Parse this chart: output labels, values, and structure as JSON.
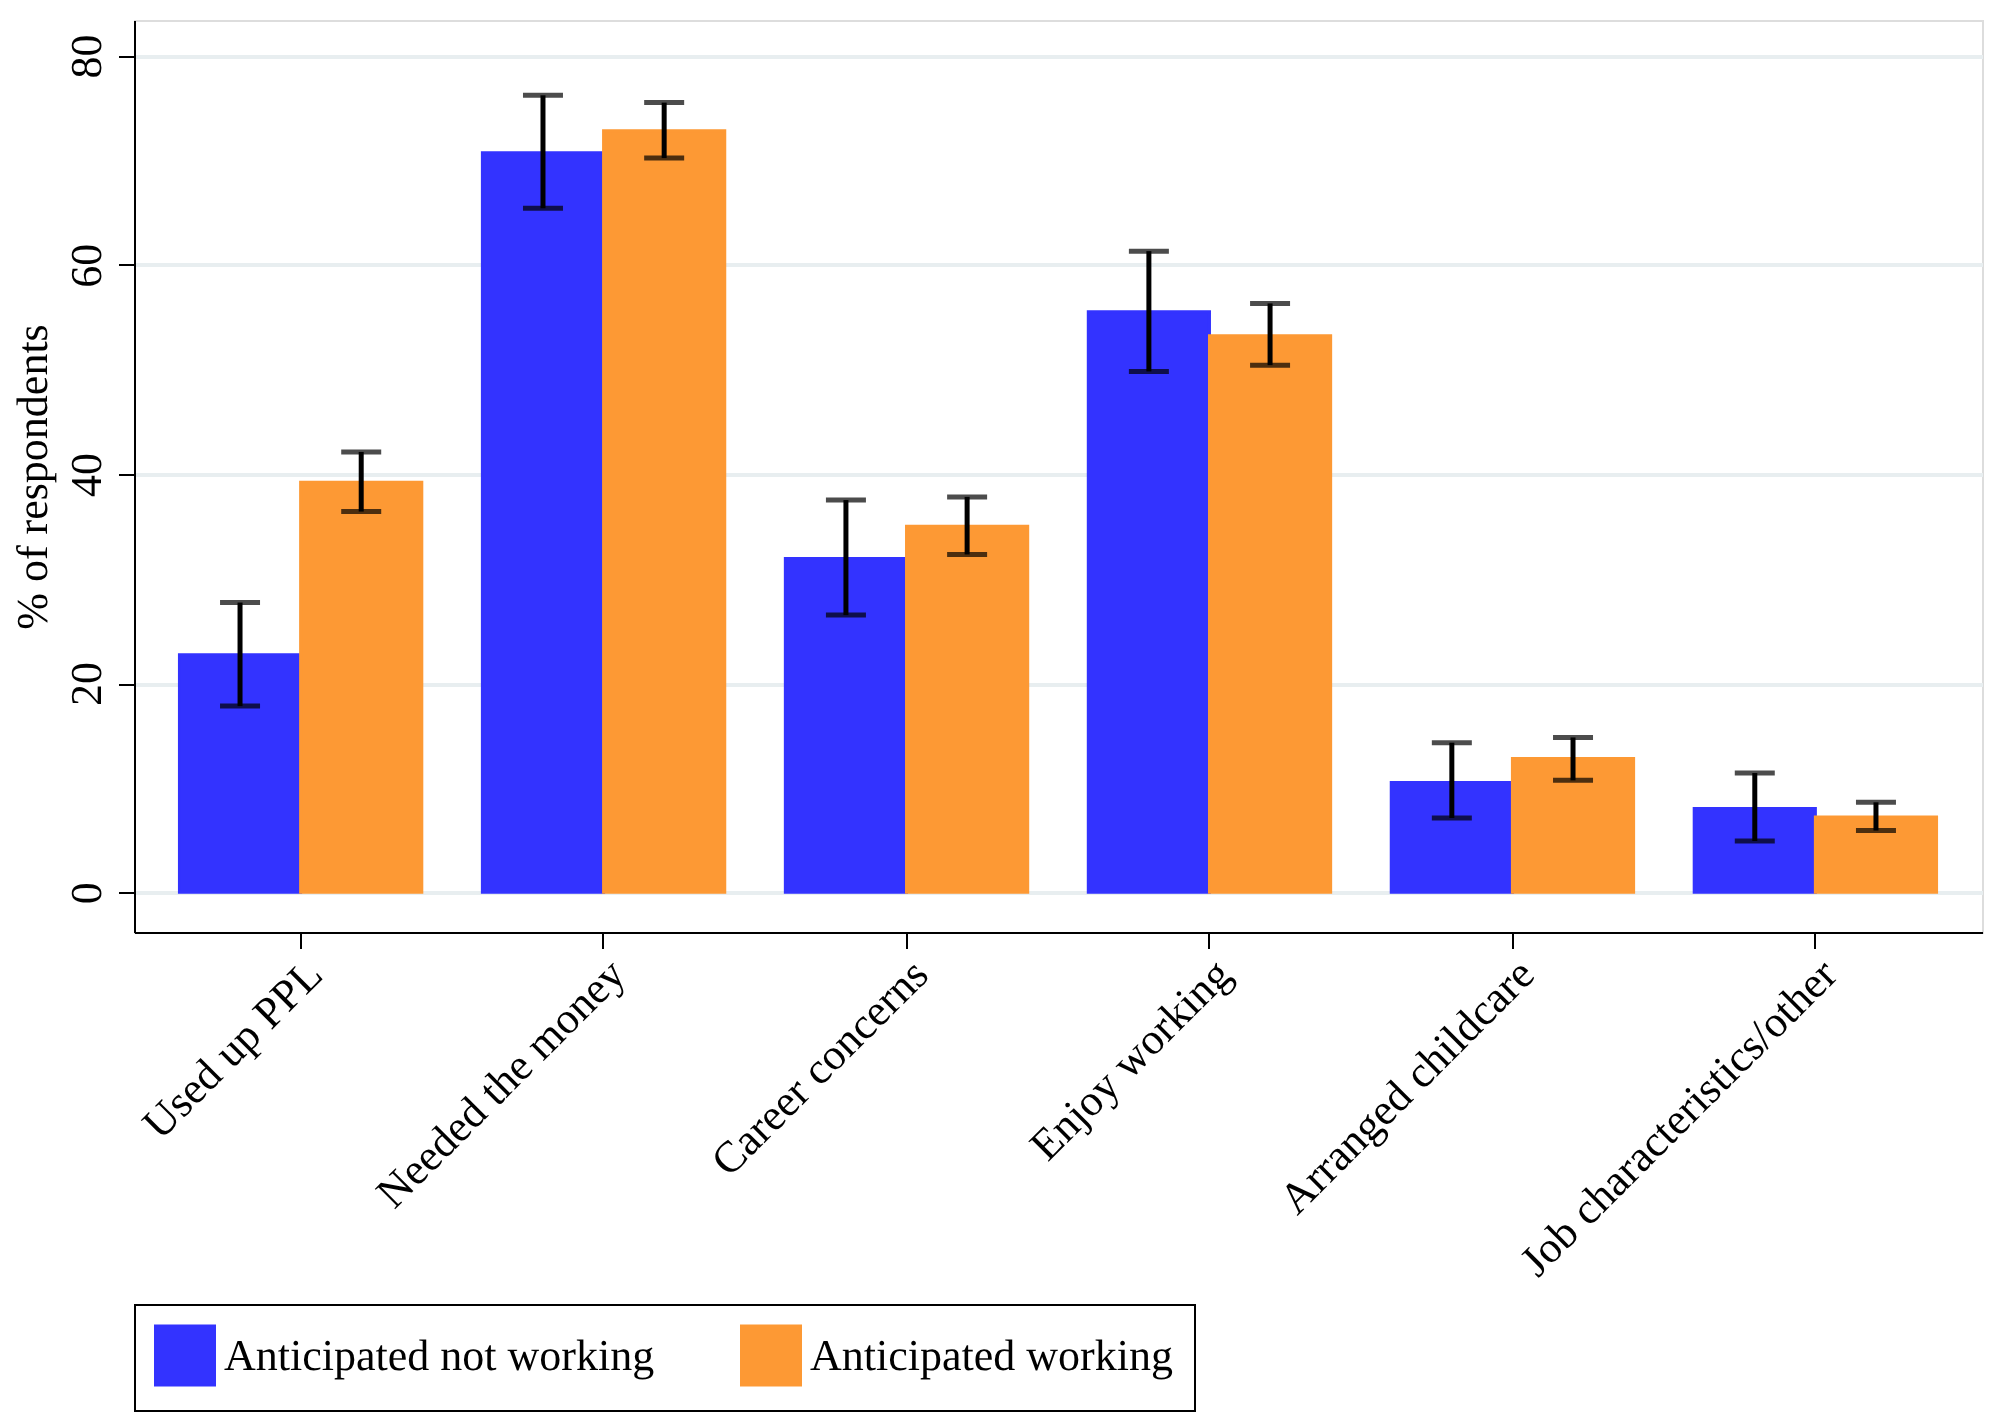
{
  "chart_data": {
    "type": "bar",
    "ylabel": "% of respondents",
    "categories": [
      "Used up PPL",
      "Needed the money",
      "Career concerns",
      "Enjoy working",
      "Arranged childcare",
      "Job characteristics/other"
    ],
    "series": [
      {
        "name": "Anticipated not working",
        "color": "#3333ff",
        "values": [
          22.7,
          70.7,
          31.9,
          55.5,
          10.5,
          8.0
        ],
        "errors": [
          [
            17.8,
            27.7
          ],
          [
            65.4,
            76.2
          ],
          [
            26.5,
            37.5
          ],
          [
            49.8,
            61.3
          ],
          [
            7.1,
            14.3
          ],
          [
            4.9,
            11.4
          ]
        ]
      },
      {
        "name": "Anticipated working",
        "color": "#fd9934",
        "values": [
          39.2,
          72.8,
          35.0,
          53.2,
          12.8,
          7.2
        ],
        "errors": [
          [
            36.4,
            42.1
          ],
          [
            70.2,
            75.5
          ],
          [
            32.3,
            37.8
          ],
          [
            50.4,
            56.3
          ],
          [
            10.7,
            14.8
          ],
          [
            5.9,
            8.6
          ]
        ]
      }
    ],
    "ylim": [
      -3.8,
      83.4
    ],
    "yticks": [
      0,
      20,
      40,
      60,
      80
    ],
    "grid": "y",
    "legend": "bottom"
  }
}
